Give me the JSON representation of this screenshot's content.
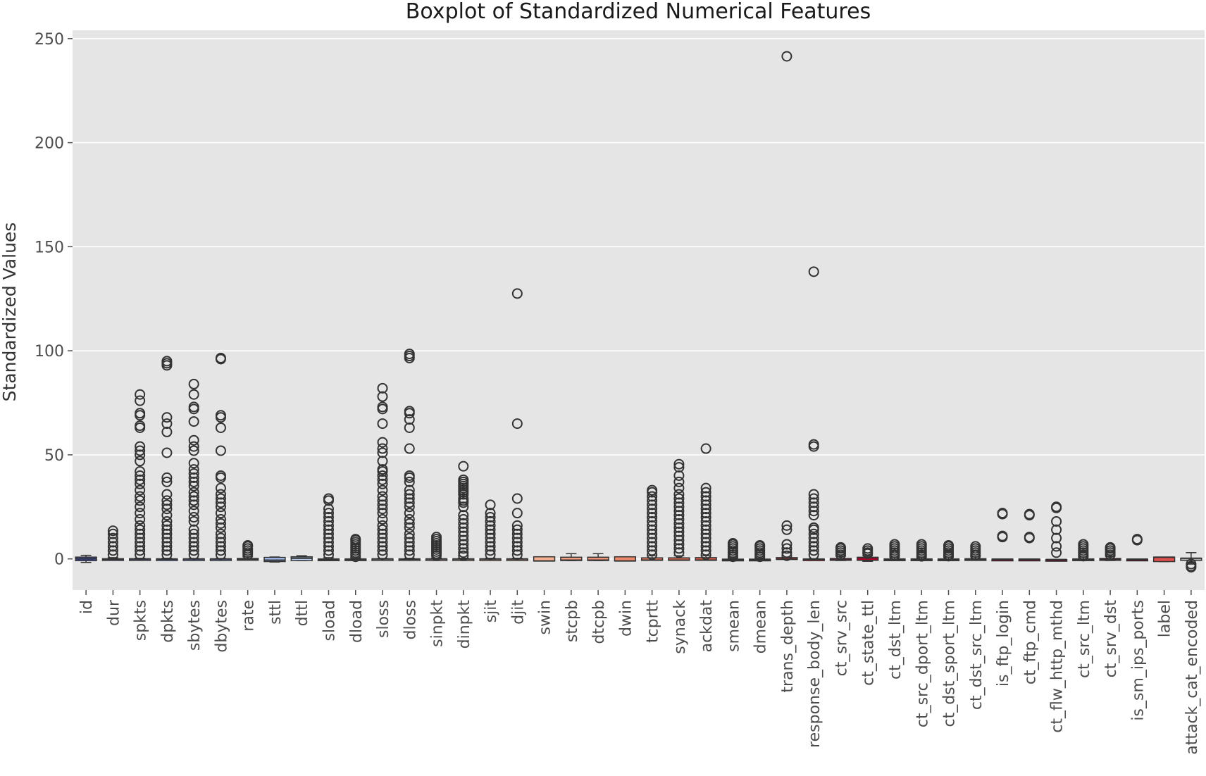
{
  "chart_data": {
    "type": "boxplot",
    "title": "Boxplot of Standardized Numerical Features",
    "xlabel": "",
    "ylabel": "Standardized Values",
    "ylim": [
      -15,
      254
    ],
    "yticks": [
      0,
      50,
      100,
      150,
      200,
      250
    ],
    "grid": true,
    "background": "#e5e5e5",
    "categories": [
      "id",
      "dur",
      "spkts",
      "dpkts",
      "sbytes",
      "dbytes",
      "rate",
      "sttl",
      "dttl",
      "sload",
      "dload",
      "sloss",
      "dloss",
      "sinpkt",
      "dinpkt",
      "sjit",
      "djit",
      "swin",
      "stcpb",
      "dtcpb",
      "dwin",
      "tcprtt",
      "synack",
      "ackdat",
      "smean",
      "dmean",
      "trans_depth",
      "response_body_len",
      "ct_srv_src",
      "ct_state_ttl",
      "ct_dst_ltm",
      "ct_src_dport_ltm",
      "ct_dst_sport_ltm",
      "ct_dst_src_ltm",
      "is_ftp_login",
      "ct_ftp_cmd",
      "ct_flw_http_mthd",
      "ct_src_ltm",
      "ct_srv_dst",
      "is_sm_ips_ports",
      "label",
      "attack_cat_encoded"
    ],
    "colors": [
      "#3b4cc0",
      "#4a63d3",
      "#5a78e4",
      "#6b8df0",
      "#7b9ff9",
      "#8db0fe",
      "#9ebeff",
      "#aac7fd",
      "#b9d0f9",
      "#c6d6f2",
      "#d1dae9",
      "#dcdddd",
      "#e5d8d1",
      "#ecd3c5",
      "#f1ccb8",
      "#f4c5ad",
      "#f7b99e",
      "#f7af91",
      "#f6a283",
      "#f39577",
      "#ef886b",
      "#e97a5f",
      "#e36b54",
      "#dc5d4a",
      "#d44e41",
      "#cc403a",
      "#c43032",
      "#ba1e2c",
      "#b40426",
      "#a80326",
      "#9b0226",
      "#8e0226",
      "#830226",
      "#7a0226",
      "#720226",
      "#6b0126",
      "#650126",
      "#5e0126",
      "#580126",
      "#520126",
      "#de4e4e",
      "#b0b0b0"
    ],
    "series": [
      {
        "name": "id",
        "q1": -0.85,
        "median": 0,
        "q3": 0.85,
        "whisker_low": -1.7,
        "whisker_high": 1.7,
        "outliers": []
      },
      {
        "name": "dur",
        "q1": -0.2,
        "median": -0.15,
        "q3": 0.1,
        "whisker_low": -0.2,
        "whisker_high": 0.6,
        "outliers": [
          13.5,
          12,
          10,
          8,
          6,
          4,
          2
        ]
      },
      {
        "name": "spkts",
        "q1": -0.1,
        "median": -0.05,
        "q3": 0.1,
        "whisker_low": -0.1,
        "whisker_high": 0.3,
        "outliers": [
          79,
          76,
          70,
          69,
          64,
          63,
          54,
          52,
          50,
          47,
          42,
          40,
          38,
          36,
          33,
          30,
          28,
          25,
          22,
          19,
          16,
          14,
          12,
          10,
          8,
          6,
          4,
          2
        ]
      },
      {
        "name": "dpkts",
        "q1": -0.15,
        "median": -0.1,
        "q3": 0.05,
        "whisker_low": -0.15,
        "whisker_high": 0.3,
        "outliers": [
          95,
          94,
          93,
          68,
          65,
          61,
          51,
          39,
          37,
          31,
          28,
          26,
          24,
          21,
          18,
          16,
          14,
          12,
          10,
          8,
          6,
          4,
          2
        ]
      },
      {
        "name": "sbytes",
        "q1": -0.1,
        "median": -0.05,
        "q3": 0.05,
        "whisker_low": -0.1,
        "whisker_high": 0.2,
        "outliers": [
          84,
          79,
          73,
          72,
          66,
          57,
          54,
          52,
          46,
          43,
          41,
          39,
          37,
          35,
          32,
          30,
          28,
          26,
          23,
          20,
          18,
          14,
          12,
          10,
          8,
          6,
          4,
          2
        ]
      },
      {
        "name": "dbytes",
        "q1": -0.1,
        "median": -0.05,
        "q3": 0.05,
        "whisker_low": -0.1,
        "whisker_high": 0.2,
        "outliers": [
          96.5,
          96,
          69,
          68,
          63,
          52,
          40,
          39,
          34,
          31,
          29,
          27,
          25,
          22,
          19,
          17,
          15,
          12,
          10,
          8,
          6,
          4,
          2
        ]
      },
      {
        "name": "rate",
        "q1": -0.5,
        "median": -0.3,
        "q3": 0.2,
        "whisker_low": -0.5,
        "whisker_high": 1.0,
        "outliers": [
          6.5,
          6,
          5,
          4,
          3,
          2
        ]
      },
      {
        "name": "sttl",
        "q1": -1.3,
        "median": -0.6,
        "q3": 0.7,
        "whisker_low": -1.5,
        "whisker_high": 0.9,
        "outliers": []
      },
      {
        "name": "dttl",
        "q1": -0.8,
        "median": 0.3,
        "q3": 1.0,
        "whisker_low": -0.8,
        "whisker_high": 1.5,
        "outliers": []
      },
      {
        "name": "sload",
        "q1": -0.4,
        "median": -0.3,
        "q3": 0.0,
        "whisker_low": -0.4,
        "whisker_high": 0.6,
        "outliers": [
          29,
          28,
          24,
          22,
          20,
          18,
          16,
          14,
          12,
          10,
          8,
          6,
          4,
          2
        ]
      },
      {
        "name": "dload",
        "q1": -0.3,
        "median": -0.25,
        "q3": 0.0,
        "whisker_low": -0.3,
        "whisker_high": 0.5,
        "outliers": [
          9.5,
          9,
          8,
          7,
          6,
          5,
          4,
          3,
          2,
          1
        ]
      },
      {
        "name": "sloss",
        "q1": -0.1,
        "median": -0.05,
        "q3": 0.05,
        "whisker_low": -0.1,
        "whisker_high": 0.2,
        "outliers": [
          82,
          78,
          73,
          72,
          65,
          56,
          53,
          51,
          47,
          43,
          42,
          40,
          38,
          36,
          33,
          30,
          28,
          26,
          24,
          22,
          19,
          16,
          14,
          12,
          10,
          8,
          6,
          4,
          2
        ]
      },
      {
        "name": "dloss",
        "q1": -0.15,
        "median": -0.1,
        "q3": 0.05,
        "whisker_low": -0.15,
        "whisker_high": 0.3,
        "outliers": [
          98.5,
          97.5,
          96.5,
          71,
          70,
          67,
          63,
          53,
          40,
          39,
          37,
          33,
          31,
          29,
          27,
          25,
          22,
          19,
          17,
          15,
          12,
          10,
          8,
          6,
          4,
          2
        ]
      },
      {
        "name": "sinpkt",
        "q1": -0.1,
        "median": -0.05,
        "q3": 0.05,
        "whisker_low": -0.1,
        "whisker_high": 0.3,
        "outliers": [
          10.5,
          9.5,
          8.5,
          7.5,
          6.5,
          5.5,
          4.5,
          3.5,
          2.5,
          1.5
        ]
      },
      {
        "name": "dinpkt",
        "q1": -0.1,
        "median": -0.05,
        "q3": 0.05,
        "whisker_low": -0.1,
        "whisker_high": 0.3,
        "outliers": [
          44.5,
          38,
          37,
          36,
          35,
          34,
          33,
          32,
          31,
          29,
          28,
          27,
          25,
          21,
          19,
          17,
          15,
          13,
          11,
          9,
          7,
          5,
          3,
          1.5
        ]
      },
      {
        "name": "sjit",
        "q1": -0.1,
        "median": -0.05,
        "q3": 0.05,
        "whisker_low": -0.1,
        "whisker_high": 0.3,
        "outliers": [
          26,
          22,
          20,
          18,
          16,
          14,
          12,
          10,
          8,
          6,
          4,
          2
        ]
      },
      {
        "name": "djit",
        "q1": -0.1,
        "median": -0.05,
        "q3": 0.05,
        "whisker_low": -0.1,
        "whisker_high": 0.3,
        "outliers": [
          127.5,
          65,
          29,
          22,
          16,
          14,
          12,
          10,
          8,
          6,
          4,
          2
        ]
      },
      {
        "name": "swin",
        "q1": -1.0,
        "median": -1.0,
        "q3": 1.0,
        "whisker_low": -1.0,
        "whisker_high": 1.0,
        "outliers": []
      },
      {
        "name": "stcpb",
        "q1": -0.8,
        "median": -0.6,
        "q3": 0.8,
        "whisker_low": -0.8,
        "whisker_high": 2.5,
        "outliers": []
      },
      {
        "name": "dtcpb",
        "q1": -0.8,
        "median": -0.6,
        "q3": 0.8,
        "whisker_low": -0.8,
        "whisker_high": 2.5,
        "outliers": []
      },
      {
        "name": "dwin",
        "q1": -1.0,
        "median": -1.0,
        "q3": 1.0,
        "whisker_low": -1.0,
        "whisker_high": 1.0,
        "outliers": []
      },
      {
        "name": "tcprtt",
        "q1": -0.7,
        "median": -0.6,
        "q3": 0.5,
        "whisker_low": -0.7,
        "whisker_high": 1.5,
        "outliers": [
          33,
          32,
          30,
          28,
          26,
          24,
          22,
          20,
          18,
          16,
          14,
          12,
          10,
          8,
          6,
          4,
          2
        ]
      },
      {
        "name": "synack",
        "q1": -0.7,
        "median": -0.6,
        "q3": 0.5,
        "whisker_low": -0.7,
        "whisker_high": 1.5,
        "outliers": [
          45.5,
          44,
          40,
          37,
          34,
          31,
          29,
          27,
          25,
          23,
          21,
          19,
          17,
          15,
          13,
          11,
          9,
          7,
          5,
          3
        ]
      },
      {
        "name": "ackdat",
        "q1": -0.7,
        "median": -0.6,
        "q3": 0.6,
        "whisker_low": -0.7,
        "whisker_high": 1.5,
        "outliers": [
          53,
          34,
          32,
          30,
          28,
          26,
          24,
          22,
          20,
          18,
          16,
          14,
          12,
          10,
          8,
          6,
          4,
          2
        ]
      },
      {
        "name": "smean",
        "q1": -0.5,
        "median": -0.45,
        "q3": -0.1,
        "whisker_low": -0.5,
        "whisker_high": 0.5,
        "outliers": [
          7.5,
          7,
          6,
          5,
          4,
          3,
          2,
          1
        ]
      },
      {
        "name": "dmean",
        "q1": -0.5,
        "median": -0.45,
        "q3": -0.1,
        "whisker_low": -0.5,
        "whisker_high": 0.4,
        "outliers": [
          6.5,
          6,
          5,
          4,
          3,
          2,
          1
        ]
      },
      {
        "name": "trans_depth",
        "q1": -0.2,
        "median": -0.2,
        "q3": 0.6,
        "whisker_low": -0.2,
        "whisker_high": 0.6,
        "outliers": [
          241.5,
          16,
          14,
          7,
          5,
          3,
          1.5
        ]
      },
      {
        "name": "response_body_len",
        "q1": -0.1,
        "median": -0.1,
        "q3": 0.0,
        "whisker_low": -0.1,
        "whisker_high": 0.1,
        "outliers": [
          138,
          55,
          54,
          31,
          29,
          27,
          25,
          23,
          21,
          15,
          14,
          12,
          10,
          8,
          6,
          4,
          2
        ]
      },
      {
        "name": "ct_srv_src",
        "q1": -0.7,
        "median": -0.5,
        "q3": 0.2,
        "whisker_low": -0.8,
        "whisker_high": 1.3,
        "outliers": [
          5.5,
          5,
          4,
          3,
          2
        ]
      },
      {
        "name": "ct_state_ttl",
        "q1": -0.7,
        "median": 0.7,
        "q3": 0.7,
        "whisker_low": -1.2,
        "whisker_high": 1.5,
        "outliers": [
          5,
          4,
          3,
          2.5
        ]
      },
      {
        "name": "ct_dst_ltm",
        "q1": -0.6,
        "median": -0.4,
        "q3": 0.0,
        "whisker_low": -0.6,
        "whisker_high": 0.8,
        "outliers": [
          7,
          6,
          5,
          4,
          3,
          2,
          1.5
        ]
      },
      {
        "name": "ct_src_dport_ltm",
        "q1": -0.5,
        "median": -0.4,
        "q3": 0.0,
        "whisker_low": -0.5,
        "whisker_high": 0.7,
        "outliers": [
          7,
          6,
          5,
          4,
          3,
          2,
          1.2
        ]
      },
      {
        "name": "ct_dst_sport_ltm",
        "q1": -0.6,
        "median": -0.5,
        "q3": 0.0,
        "whisker_low": -0.6,
        "whisker_high": 0.8,
        "outliers": [
          6.5,
          6,
          5,
          4,
          3,
          2,
          1.3
        ]
      },
      {
        "name": "ct_dst_src_ltm",
        "q1": -0.6,
        "median": -0.4,
        "q3": 0.1,
        "whisker_low": -0.6,
        "whisker_high": 1.0,
        "outliers": [
          6,
          5,
          4,
          3,
          2,
          1.6
        ]
      },
      {
        "name": "is_ftp_login",
        "q1": -0.1,
        "median": -0.1,
        "q3": -0.1,
        "whisker_low": -0.1,
        "whisker_high": -0.1,
        "outliers": [
          22,
          21.5,
          11,
          10.5
        ]
      },
      {
        "name": "ct_ftp_cmd",
        "q1": -0.1,
        "median": -0.1,
        "q3": -0.1,
        "whisker_low": -0.1,
        "whisker_high": -0.1,
        "outliers": [
          21.5,
          21,
          10.5,
          10
        ]
      },
      {
        "name": "ct_flw_http_mthd",
        "q1": -0.3,
        "median": -0.3,
        "q3": -0.3,
        "whisker_low": -0.3,
        "whisker_high": -0.3,
        "outliers": [
          25,
          24.5,
          18,
          14,
          10,
          6,
          3
        ]
      },
      {
        "name": "ct_src_ltm",
        "q1": -0.6,
        "median": -0.4,
        "q3": 0.0,
        "whisker_low": -0.6,
        "whisker_high": 0.9,
        "outliers": [
          7,
          6,
          5,
          4,
          3,
          2,
          1.3
        ]
      },
      {
        "name": "ct_srv_dst",
        "q1": -0.7,
        "median": -0.5,
        "q3": 0.2,
        "whisker_low": -0.8,
        "whisker_high": 1.3,
        "outliers": [
          5.5,
          5,
          4,
          3,
          2
        ]
      },
      {
        "name": "is_sm_ips_ports",
        "q1": -0.1,
        "median": -0.1,
        "q3": -0.1,
        "whisker_low": -0.1,
        "whisker_high": -0.1,
        "outliers": [
          9.5,
          9
        ]
      },
      {
        "name": "label",
        "q1": -1.3,
        "median": 0.8,
        "q3": 0.8,
        "whisker_low": -1.3,
        "whisker_high": 0.8,
        "outliers": []
      },
      {
        "name": "attack_cat_encoded",
        "q1": -0.7,
        "median": 0.3,
        "q3": 0.3,
        "whisker_low": -2.5,
        "whisker_high": 3.0,
        "outliers": [
          -2.5,
          -3.5,
          -4
        ]
      }
    ]
  }
}
